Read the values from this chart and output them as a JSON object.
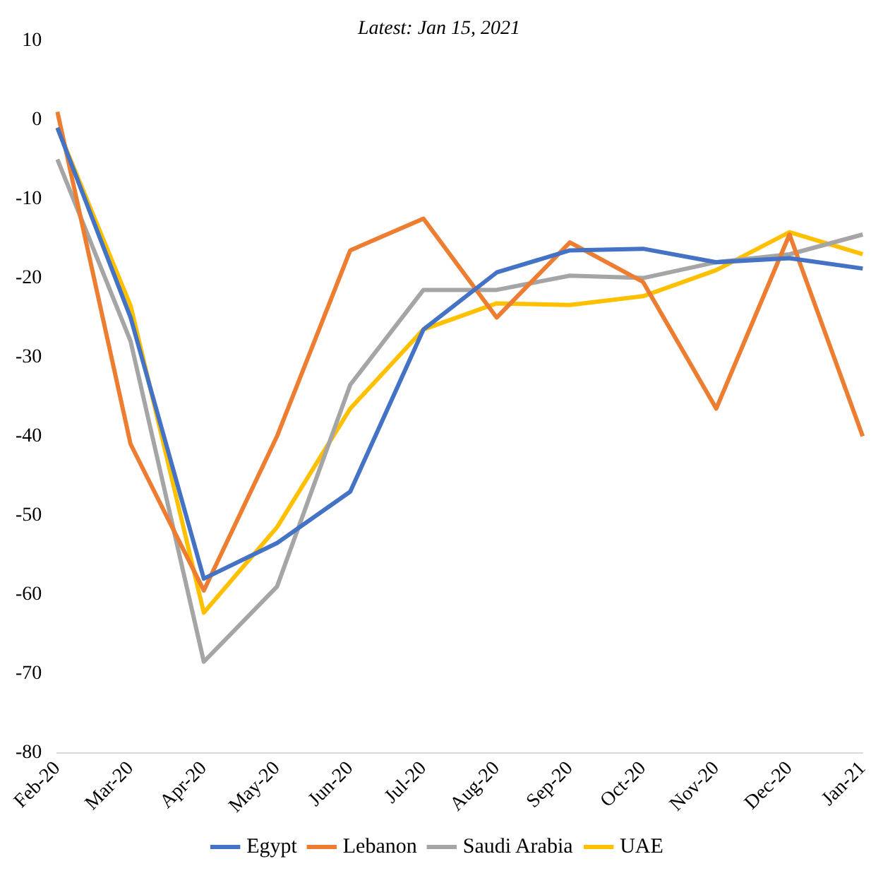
{
  "chart_data": {
    "type": "line",
    "subtitle": "Latest: Jan 15, 2021",
    "categories": [
      "Feb-20",
      "Mar-20",
      "Apr-20",
      "May-20",
      "Jun-20",
      "Jul-20",
      "Aug-20",
      "Sep-20",
      "Oct-20",
      "Nov-20",
      "Dec-20",
      "Jan-21"
    ],
    "series": [
      {
        "name": "Egypt",
        "color": "#4472c4",
        "values": [
          -1,
          -25,
          -58,
          -53.5,
          -47,
          -26.5,
          -19.3,
          -16.5,
          -16.3,
          -18,
          -17.5,
          -18.8
        ]
      },
      {
        "name": "Lebanon",
        "color": "#ed7d31",
        "values": [
          1,
          -41,
          -59.5,
          -40,
          -16.5,
          -12.5,
          -25,
          -15.5,
          -20.5,
          -36.5,
          -14.5,
          -40
        ]
      },
      {
        "name": "Saudi Arabia",
        "color": "#a5a5a5",
        "values": [
          -5,
          -28,
          -68.5,
          -59,
          -33.5,
          -21.5,
          -21.5,
          -19.7,
          -20,
          -18,
          -17,
          -14.5
        ]
      },
      {
        "name": "UAE",
        "color": "#ffc000",
        "values": [
          -1,
          -23.5,
          -62.3,
          -51.5,
          -36.5,
          -26.5,
          -23.2,
          -23.4,
          -22.3,
          -19,
          -14.2,
          -17
        ]
      }
    ],
    "ylim": [
      -80,
      10
    ],
    "yticks": [
      -80,
      -70,
      -60,
      -50,
      -40,
      -30,
      -20,
      -10,
      0,
      10
    ],
    "grid": false,
    "legend": "bottom",
    "marker": "none",
    "line_style": "solid"
  }
}
